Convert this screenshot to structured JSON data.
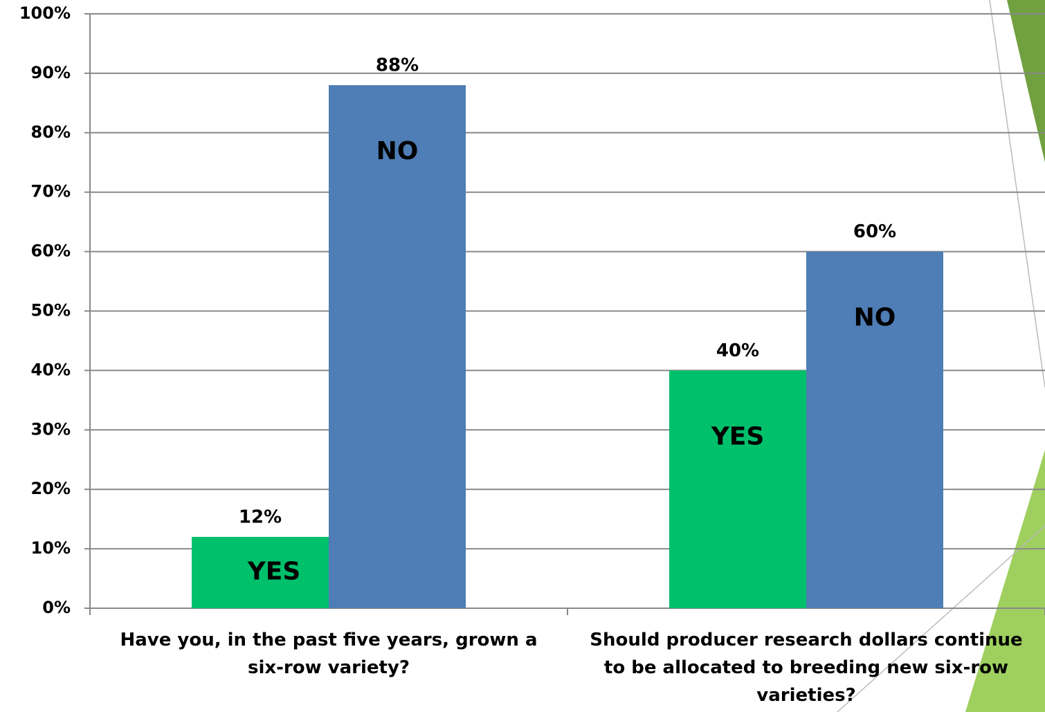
{
  "chart_data": {
    "type": "bar",
    "categories": [
      "Have you, in the past five years, grown a six-row variety?",
      "Should producer research dollars continue to be allocated to breeding new six-row varieties?"
    ],
    "series": [
      {
        "name": "YES",
        "color": "#00c06c",
        "values": [
          12,
          40
        ],
        "value_labels": [
          "12%",
          "40%"
        ]
      },
      {
        "name": "NO",
        "color": "#4f7db5",
        "values": [
          88,
          60
        ],
        "value_labels": [
          "88%",
          "60%"
        ]
      }
    ],
    "ylim": [
      0,
      100
    ],
    "yticks": [
      {
        "value": 0,
        "label": "0%"
      },
      {
        "value": 10,
        "label": "10%"
      },
      {
        "value": 20,
        "label": "20%"
      },
      {
        "value": 30,
        "label": "30%"
      },
      {
        "value": 40,
        "label": "40%"
      },
      {
        "value": 50,
        "label": "50%"
      },
      {
        "value": 60,
        "label": "60%"
      },
      {
        "value": 70,
        "label": "70%"
      },
      {
        "value": 80,
        "label": "80%"
      },
      {
        "value": 90,
        "label": "90%"
      },
      {
        "value": 100,
        "label": "100%"
      }
    ],
    "grid": true
  }
}
